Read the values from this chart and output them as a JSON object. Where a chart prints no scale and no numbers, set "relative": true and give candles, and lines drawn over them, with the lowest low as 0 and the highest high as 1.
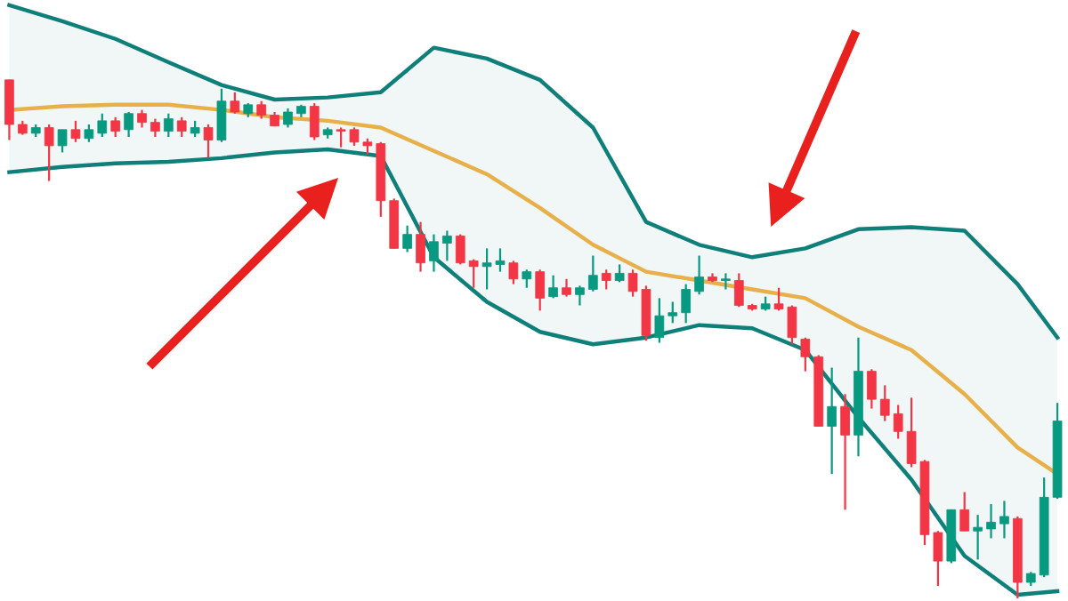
{
  "chart_data": {
    "type": "candlestick",
    "relative": true,
    "categories": [
      null,
      null,
      null,
      null,
      null,
      null,
      null,
      null,
      null,
      null,
      null,
      null,
      null,
      null,
      null,
      null,
      null,
      null,
      null,
      null,
      null,
      null,
      null,
      null,
      null,
      null,
      null,
      null,
      null,
      null,
      null,
      null,
      null,
      null,
      null,
      null,
      null,
      null,
      null,
      null,
      null,
      null,
      null,
      null,
      null,
      null,
      null,
      null,
      null,
      null,
      null,
      null,
      null,
      null,
      null,
      null,
      null,
      null,
      null,
      null,
      null,
      null,
      null,
      null,
      null,
      null,
      null,
      null,
      null,
      null,
      null,
      null,
      null,
      null,
      null,
      null,
      null,
      null,
      null,
      null
    ],
    "ohlc": [
      [
        1.0,
        1.0,
        0.884,
        0.914
      ],
      [
        0.914,
        0.921,
        0.894,
        0.897
      ],
      [
        0.897,
        0.914,
        0.89,
        0.908
      ],
      [
        0.908,
        0.914,
        0.805,
        0.873
      ],
      [
        0.873,
        0.904,
        0.86,
        0.904
      ],
      [
        0.904,
        0.921,
        0.88,
        0.887
      ],
      [
        0.887,
        0.914,
        0.88,
        0.904
      ],
      [
        0.897,
        0.935,
        0.89,
        0.921
      ],
      [
        0.921,
        0.928,
        0.89,
        0.901
      ],
      [
        0.904,
        0.938,
        0.89,
        0.935
      ],
      [
        0.935,
        0.942,
        0.908,
        0.918
      ],
      [
        0.918,
        0.925,
        0.89,
        0.901
      ],
      [
        0.901,
        0.935,
        0.89,
        0.925
      ],
      [
        0.921,
        0.928,
        0.89,
        0.901
      ],
      [
        0.897,
        0.921,
        0.89,
        0.908
      ],
      [
        0.908,
        0.914,
        0.849,
        0.884
      ],
      [
        0.884,
        0.983,
        0.88,
        0.959
      ],
      [
        0.959,
        0.976,
        0.935,
        0.938
      ],
      [
        0.935,
        0.955,
        0.928,
        0.952
      ],
      [
        0.952,
        0.959,
        0.925,
        0.932
      ],
      [
        0.932,
        0.938,
        0.911,
        0.911
      ],
      [
        0.914,
        0.945,
        0.908,
        0.938
      ],
      [
        0.935,
        0.952,
        0.928,
        0.949
      ],
      [
        0.949,
        0.955,
        0.884,
        0.89
      ],
      [
        0.894,
        0.908,
        0.887,
        0.904
      ],
      [
        0.904,
        0.908,
        0.87,
        0.901
      ],
      [
        0.904,
        0.908,
        0.873,
        0.88
      ],
      [
        0.88,
        0.887,
        0.856,
        0.873
      ],
      [
        0.877,
        0.88,
        0.736,
        0.767
      ],
      [
        0.767,
        0.771,
        0.675,
        0.675
      ],
      [
        0.675,
        0.719,
        0.668,
        0.702
      ],
      [
        0.702,
        0.726,
        0.63,
        0.647
      ],
      [
        0.651,
        0.702,
        0.63,
        0.688
      ],
      [
        0.685,
        0.709,
        0.651,
        0.699
      ],
      [
        0.699,
        0.702,
        0.644,
        0.647
      ],
      [
        0.651,
        0.654,
        0.599,
        0.64
      ],
      [
        0.64,
        0.675,
        0.596,
        0.647
      ],
      [
        0.644,
        0.675,
        0.63,
        0.651
      ],
      [
        0.647,
        0.651,
        0.606,
        0.616
      ],
      [
        0.616,
        0.634,
        0.599,
        0.63
      ],
      [
        0.63,
        0.634,
        0.555,
        0.579
      ],
      [
        0.582,
        0.623,
        0.579,
        0.599
      ],
      [
        0.599,
        0.616,
        0.582,
        0.586
      ],
      [
        0.586,
        0.603,
        0.565,
        0.599
      ],
      [
        0.596,
        0.661,
        0.592,
        0.623
      ],
      [
        0.627,
        0.634,
        0.596,
        0.613
      ],
      [
        0.613,
        0.644,
        0.61,
        0.627
      ],
      [
        0.627,
        0.634,
        0.582,
        0.592
      ],
      [
        0.596,
        0.603,
        0.497,
        0.507
      ],
      [
        0.503,
        0.579,
        0.493,
        0.545
      ],
      [
        0.545,
        0.572,
        0.531,
        0.551
      ],
      [
        0.551,
        0.606,
        0.531,
        0.596
      ],
      [
        0.592,
        0.661,
        0.586,
        0.62
      ],
      [
        0.62,
        0.627,
        0.61,
        0.613
      ],
      [
        0.613,
        0.627,
        0.596,
        0.616
      ],
      [
        0.613,
        0.627,
        0.562,
        0.565
      ],
      [
        0.565,
        0.568,
        0.555,
        0.558
      ],
      [
        0.558,
        0.582,
        0.555,
        0.568
      ],
      [
        0.568,
        0.599,
        0.555,
        0.558
      ],
      [
        0.562,
        0.565,
        0.49,
        0.503
      ],
      [
        0.5,
        0.503,
        0.438,
        0.466
      ],
      [
        0.466,
        0.469,
        0.332,
        0.332
      ],
      [
        0.332,
        0.445,
        0.24,
        0.37
      ],
      [
        0.37,
        0.394,
        0.171,
        0.315
      ],
      [
        0.315,
        0.503,
        0.274,
        0.438
      ],
      [
        0.438,
        0.442,
        0.366,
        0.384
      ],
      [
        0.384,
        0.411,
        0.342,
        0.353
      ],
      [
        0.356,
        0.373,
        0.308,
        0.322
      ],
      [
        0.322,
        0.387,
        0.253,
        0.26
      ],
      [
        0.264,
        0.267,
        0.103,
        0.123
      ],
      [
        0.127,
        0.13,
        0.024,
        0.072
      ],
      [
        0.072,
        0.171,
        0.068,
        0.171
      ],
      [
        0.171,
        0.205,
        0.13,
        0.13
      ],
      [
        0.13,
        0.161,
        0.075,
        0.137
      ],
      [
        0.134,
        0.182,
        0.116,
        0.147
      ],
      [
        0.144,
        0.188,
        0.116,
        0.158
      ],
      [
        0.154,
        0.158,
        0.0,
        0.031
      ],
      [
        0.031,
        0.051,
        0.024,
        0.048
      ],
      [
        0.045,
        0.233,
        0.041,
        0.195
      ],
      [
        0.195,
        0.377,
        0.192,
        0.342
      ]
    ],
    "colors": [
      "#f23645",
      "#f23645",
      "#089981",
      "#f23645",
      "#089981",
      "#f23645",
      "#089981",
      "#089981",
      "#f23645",
      "#089981",
      "#f23645",
      "#f23645",
      "#089981",
      "#f23645",
      "#089981",
      "#f23645",
      "#089981",
      "#f23645",
      "#089981",
      "#f23645",
      "#f23645",
      "#089981",
      "#089981",
      "#f23645",
      "#089981",
      "#f23645",
      "#f23645",
      "#f23645",
      "#f23645",
      "#f23645",
      "#089981",
      "#f23645",
      "#089981",
      "#089981",
      "#f23645",
      "#f23645",
      "#089981",
      "#089981",
      "#f23645",
      "#089981",
      "#f23645",
      "#089981",
      "#f23645",
      "#089981",
      "#089981",
      "#f23645",
      "#089981",
      "#f23645",
      "#f23645",
      "#089981",
      "#089981",
      "#089981",
      "#089981",
      "#f23645",
      "#089981",
      "#f23645",
      "#f23645",
      "#089981",
      "#f23645",
      "#f23645",
      "#f23645",
      "#f23645",
      "#089981",
      "#f23645",
      "#089981",
      "#f23645",
      "#f23645",
      "#f23645",
      "#f23645",
      "#f23645",
      "#f23645",
      "#089981",
      "#f23645",
      "#089981",
      "#089981",
      "#089981",
      "#f23645",
      "#089981",
      "#089981",
      "#089981"
    ],
    "series": [
      {
        "type": "line",
        "color": "#0f7f7a",
        "values": [
          1.144,
          null,
          null,
          null,
          1.113,
          null,
          null,
          null,
          1.079,
          null,
          null,
          null,
          1.034,
          null,
          null,
          null,
          0.99,
          null,
          null,
          null,
          0.962,
          null,
          null,
          null,
          0.966,
          null,
          null,
          null,
          0.976,
          null,
          null,
          null,
          1.062,
          null,
          null,
          null,
          1.041,
          null,
          null,
          null,
          1.0,
          null,
          null,
          null,
          0.908,
          null,
          null,
          null,
          0.726,
          null,
          null,
          null,
          0.682,
          null,
          null,
          null,
          0.658,
          null,
          null,
          null,
          0.675,
          null,
          null,
          null,
          0.712,
          null,
          null,
          null,
          0.716,
          null,
          null,
          null,
          0.709,
          null,
          null,
          null,
          0.606,
          null,
          null,
          0.503
        ]
      },
      {
        "type": "line",
        "color": "#e8b04a",
        "upper": [
          1.144,
          null,
          null,
          null,
          1.113,
          null,
          null,
          null,
          1.079,
          null,
          null,
          null,
          1.034,
          null,
          null,
          null,
          0.99,
          null,
          null,
          null,
          0.962,
          null,
          null,
          null,
          0.966,
          null,
          null,
          null,
          0.976,
          null,
          null,
          null,
          1.062,
          null,
          null,
          null,
          1.041,
          null,
          null,
          null,
          1.0,
          null,
          null,
          null,
          0.908,
          null,
          null,
          null,
          0.726,
          null,
          null,
          null,
          0.682,
          null,
          null,
          null,
          0.658,
          null,
          null,
          null,
          0.675,
          null,
          null,
          null,
          0.712,
          null,
          null,
          null,
          0.716,
          null,
          null,
          null,
          0.709,
          null,
          null,
          null,
          0.606,
          null,
          null,
          0.503
        ],
        "lower": [
          0.822,
          null,
          null,
          null,
          0.832,
          null,
          null,
          null,
          0.839,
          null,
          null,
          null,
          0.842,
          null,
          null,
          null,
          0.849,
          null,
          null,
          null,
          0.86,
          null,
          null,
          null,
          0.866,
          null,
          null,
          null,
          0.853,
          null,
          null,
          null,
          0.658,
          null,
          null,
          null,
          0.572,
          null,
          null,
          null,
          0.514,
          null,
          null,
          null,
          0.49,
          null,
          null,
          null,
          0.503,
          null,
          null,
          null,
          0.527,
          null,
          null,
          null,
          0.521,
          null,
          null,
          null,
          0.479,
          null,
          null,
          null,
          0.349,
          null,
          null,
          null,
          0.229,
          null,
          null,
          null,
          0.082,
          null,
          null,
          null,
          0.007,
          null,
          null,
          0.014
        ],
        "values": [
          0.942,
          null,
          null,
          null,
          0.949,
          null,
          null,
          null,
          0.952,
          null,
          null,
          null,
          0.952,
          null,
          null,
          null,
          0.942,
          null,
          null,
          null,
          0.928,
          null,
          null,
          null,
          0.921,
          null,
          null,
          null,
          0.908,
          null,
          null,
          null,
          0.863,
          null,
          null,
          null,
          0.818,
          null,
          null,
          null,
          0.753,
          null,
          null,
          null,
          0.682,
          null,
          null,
          null,
          0.63,
          null,
          null,
          null,
          0.613,
          null,
          null,
          null,
          0.596,
          null,
          null,
          null,
          0.579,
          null,
          null,
          null,
          0.524,
          null,
          null,
          null,
          0.479,
          null,
          null,
          null,
          0.394,
          null,
          null,
          null,
          0.291,
          null,
          null,
          0.24
        ]
      },
      {
        "type": "line",
        "color": "#0f7f7a",
        "values": [
          0.822,
          null,
          null,
          null,
          0.832,
          null,
          null,
          null,
          0.839,
          null,
          null,
          null,
          0.842,
          null,
          null,
          null,
          0.849,
          null,
          null,
          null,
          0.86,
          null,
          null,
          null,
          0.866,
          null,
          null,
          null,
          0.853,
          null,
          null,
          null,
          0.658,
          null,
          null,
          null,
          0.572,
          null,
          null,
          null,
          0.514,
          null,
          null,
          null,
          0.49,
          null,
          null,
          null,
          0.503,
          null,
          null,
          null,
          0.527,
          null,
          null,
          null,
          0.521,
          null,
          null,
          null,
          0.479,
          null,
          null,
          null,
          0.349,
          null,
          null,
          null,
          0.229,
          null,
          null,
          null,
          0.082,
          null,
          null,
          null,
          0.007,
          null,
          null,
          0.014
        ]
      }
    ]
  }
}
